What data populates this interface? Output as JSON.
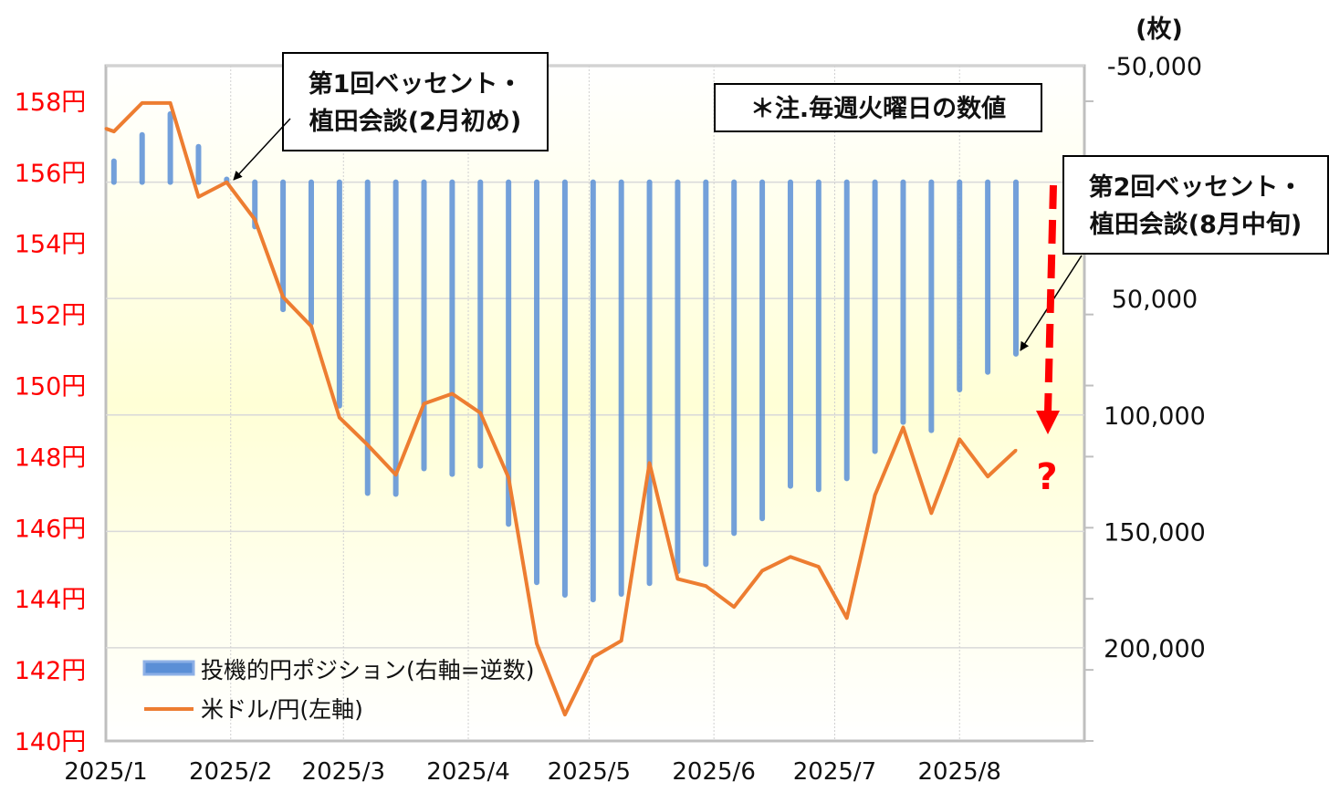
{
  "chart_data": {
    "type": "bar+line",
    "left_axis": {
      "ticks": [
        140,
        142,
        144,
        146,
        148,
        150,
        152,
        154,
        156,
        158
      ],
      "tick_labels": [
        "140円",
        "142円",
        "144円",
        "146円",
        "148円",
        "150円",
        "152円",
        "154円",
        "156円",
        "158円"
      ],
      "range": [
        140,
        159
      ]
    },
    "right_axis": {
      "unit_label": "(枚)",
      "inverted": true,
      "range": [
        -50000,
        240000
      ],
      "ticks": [
        -50000,
        50000,
        100000,
        150000,
        200000
      ],
      "tick_labels": [
        "-50,000",
        "50,000",
        "100,000",
        "150,000",
        "200,000"
      ]
    },
    "x_axis": {
      "range": [
        "2025-01-01",
        "2025-09-01"
      ],
      "tick_dates": [
        "2025-01-01",
        "2025-02-01",
        "2025-03-01",
        "2025-04-01",
        "2025-05-01",
        "2025-06-01",
        "2025-07-01",
        "2025-08-01"
      ],
      "tick_labels": [
        "2025/1",
        "2025/2",
        "2025/3",
        "2025/4",
        "2025/5",
        "2025/6",
        "2025/7",
        "2025/8"
      ]
    },
    "grid": true,
    "legend": {
      "placement": "bottom-left",
      "entries": [
        "投機的円ポジション(右軸=逆数)",
        "米ドル/円(左軸)"
      ]
    },
    "series": [
      {
        "name": "投機的円ポジション(右軸=逆数)",
        "axis": "right",
        "type": "bar",
        "color": "#5b8fd6",
        "start_date": "2025-01-03",
        "interval_days": 7,
        "values": [
          -9000,
          -20300,
          -29300,
          -15200,
          -1200,
          19100,
          54700,
          60500,
          96100,
          133600,
          134000,
          123000,
          125400,
          121900,
          146900,
          171900,
          177300,
          179300,
          176900,
          172300,
          167200,
          164100,
          150800,
          144500,
          130500,
          132000,
          127300,
          115600,
          103100,
          106600,
          89100,
          81600,
          73800
        ]
      },
      {
        "name": "米ドル/円(左軸)",
        "axis": "left",
        "type": "line",
        "color": "#ed7d31",
        "first_date": "2025-01-01",
        "start_date": "2025-01-03",
        "interval_days": 7,
        "values": [
          157.23,
          157.15,
          157.95,
          157.95,
          155.31,
          155.72,
          154.67,
          152.49,
          151.67,
          149.1,
          148.33,
          147.49,
          149.49,
          149.77,
          149.23,
          147.41,
          142.74,
          140.74,
          142.36,
          142.82,
          147.82,
          144.56,
          144.36,
          143.77,
          144.79,
          145.18,
          144.9,
          143.46,
          146.92,
          148.82,
          146.41,
          148.49,
          147.44,
          148.18
        ]
      }
    ],
    "annotations": {
      "meeting1": [
        "第1回ベッセント・",
        "植田会談(2月初め)"
      ],
      "note": "＊注.毎週火曜日の数値",
      "meeting2": [
        "第2回ベッセント・",
        "植田会談(8月中旬)"
      ],
      "question": "?"
    },
    "colors": {
      "left_axis_labels": "#ff0000",
      "forecast_arrow": "#ff0000",
      "plot_background": "#ffffd6"
    }
  }
}
